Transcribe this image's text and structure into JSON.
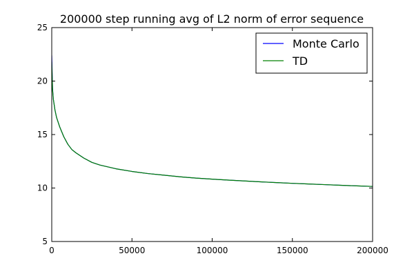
{
  "chart_data": {
    "type": "line",
    "title": "200000 step running avg of L2 norm of error sequence",
    "xlabel": "",
    "ylabel": "",
    "xlim": [
      0,
      200000
    ],
    "ylim": [
      5,
      25
    ],
    "x_ticks": [
      0,
      50000,
      100000,
      150000,
      200000
    ],
    "y_ticks": [
      5,
      10,
      15,
      20,
      25
    ],
    "x_tick_labels": [
      "0",
      "50000",
      "100000",
      "150000",
      "200000"
    ],
    "y_tick_labels": [
      "5",
      "10",
      "15",
      "20",
      "25"
    ],
    "grid": false,
    "legend_position": "top-right",
    "series": [
      {
        "name": "Monte Carlo",
        "color": "#0000ff",
        "x": [
          0,
          500,
          1000,
          2000,
          3000,
          5000,
          7500,
          10000,
          12500,
          15000,
          20000,
          25000,
          30000,
          40000,
          50000,
          60000,
          70000,
          80000,
          90000,
          100000,
          110000,
          120000,
          130000,
          140000,
          150000,
          160000,
          170000,
          180000,
          190000,
          200000
        ],
        "y": [
          22.4,
          19.3,
          18.3,
          17.3,
          16.6,
          15.7,
          14.8,
          14.1,
          13.6,
          13.3,
          12.8,
          12.4,
          12.15,
          11.8,
          11.55,
          11.35,
          11.2,
          11.05,
          10.93,
          10.83,
          10.74,
          10.66,
          10.58,
          10.51,
          10.44,
          10.38,
          10.32,
          10.26,
          10.2,
          10.15
        ]
      },
      {
        "name": "TD",
        "color": "#008000",
        "x": [
          0,
          500,
          1000,
          2000,
          3000,
          5000,
          7500,
          10000,
          12500,
          15000,
          20000,
          25000,
          30000,
          40000,
          50000,
          60000,
          70000,
          80000,
          90000,
          100000,
          110000,
          120000,
          130000,
          140000,
          150000,
          160000,
          170000,
          180000,
          190000,
          200000
        ],
        "y": [
          21.8,
          19.2,
          18.3,
          17.3,
          16.6,
          15.7,
          14.8,
          14.1,
          13.6,
          13.3,
          12.8,
          12.4,
          12.15,
          11.8,
          11.55,
          11.35,
          11.2,
          11.05,
          10.93,
          10.83,
          10.74,
          10.66,
          10.58,
          10.51,
          10.44,
          10.38,
          10.32,
          10.26,
          10.2,
          10.15
        ]
      }
    ]
  }
}
